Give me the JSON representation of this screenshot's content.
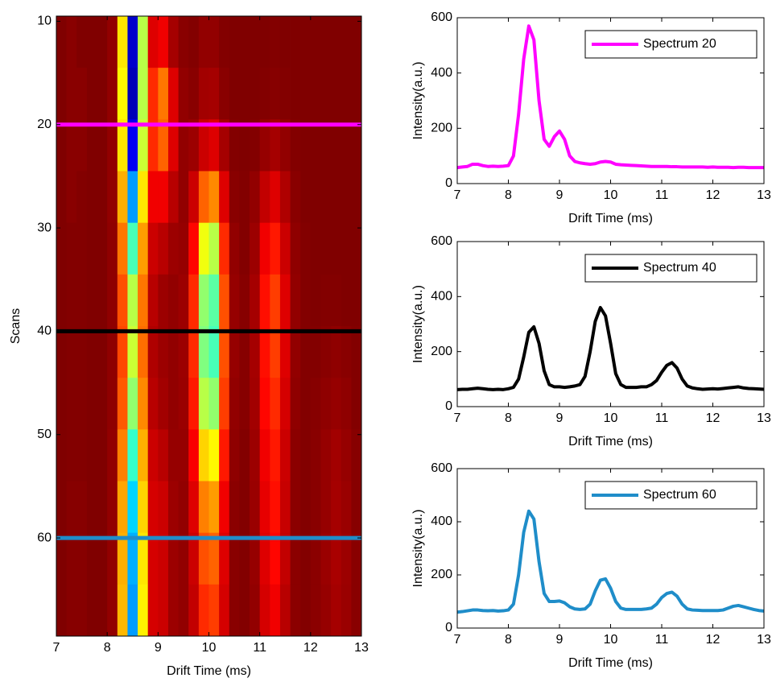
{
  "chart_data": [
    {
      "type": "heatmap",
      "xlabel": "Drift Time (ms)",
      "ylabel": "Scans",
      "x_bins": [
        7.0,
        7.2,
        7.4,
        7.6,
        7.8,
        8.0,
        8.2,
        8.4,
        8.6,
        8.8,
        9.0,
        9.2,
        9.4,
        9.6,
        9.8,
        10.0,
        10.2,
        10.4,
        10.6,
        10.8,
        11.0,
        11.2,
        11.4,
        11.6,
        11.8,
        12.0,
        12.2,
        12.4,
        12.6,
        12.8,
        13.0
      ],
      "y_bins": [
        9.5,
        14.5,
        19.5,
        24.5,
        29.5,
        34.5,
        39.5,
        44.5,
        49.5,
        54.5,
        59.5,
        64.5,
        69.5
      ],
      "values": [
        [
          60,
          65,
          60,
          60,
          60,
          70,
          250,
          560,
          300,
          110,
          120,
          80,
          65,
          62,
          70,
          70,
          62,
          60,
          60,
          60,
          60,
          62,
          60,
          60,
          60,
          60,
          60,
          60,
          60,
          60
        ],
        [
          60,
          65,
          65,
          60,
          60,
          70,
          260,
          570,
          300,
          150,
          190,
          110,
          70,
          65,
          78,
          80,
          65,
          60,
          60,
          60,
          62,
          64,
          62,
          60,
          60,
          60,
          60,
          60,
          60,
          60
        ],
        [
          60,
          65,
          65,
          60,
          60,
          70,
          250,
          540,
          290,
          150,
          180,
          110,
          70,
          75,
          100,
          110,
          80,
          62,
          60,
          62,
          72,
          80,
          70,
          62,
          60,
          60,
          60,
          60,
          60,
          60
        ],
        [
          60,
          65,
          62,
          60,
          60,
          70,
          220,
          450,
          250,
          120,
          120,
          90,
          70,
          100,
          180,
          200,
          110,
          65,
          62,
          70,
          95,
          110,
          85,
          65,
          60,
          60,
          60,
          60,
          60,
          60
        ],
        [
          60,
          62,
          62,
          60,
          60,
          68,
          190,
          360,
          210,
          100,
          90,
          75,
          72,
          130,
          270,
          300,
          150,
          70,
          62,
          75,
          120,
          140,
          100,
          68,
          62,
          60,
          60,
          60,
          60,
          60
        ],
        [
          60,
          62,
          62,
          60,
          60,
          68,
          170,
          300,
          190,
          90,
          75,
          70,
          75,
          150,
          320,
          350,
          170,
          72,
          64,
          80,
          135,
          160,
          110,
          70,
          62,
          60,
          62,
          62,
          60,
          60
        ],
        [
          60,
          62,
          62,
          60,
          60,
          68,
          165,
          290,
          185,
          85,
          75,
          70,
          75,
          150,
          330,
          360,
          170,
          72,
          64,
          80,
          135,
          160,
          110,
          70,
          62,
          62,
          65,
          68,
          65,
          62
        ],
        [
          60,
          62,
          62,
          60,
          60,
          68,
          175,
          320,
          200,
          90,
          78,
          70,
          74,
          140,
          300,
          320,
          160,
          70,
          64,
          78,
          130,
          150,
          105,
          68,
          62,
          64,
          68,
          72,
          68,
          62
        ],
        [
          60,
          62,
          62,
          60,
          60,
          70,
          195,
          370,
          220,
          100,
          90,
          72,
          72,
          125,
          240,
          260,
          140,
          68,
          62,
          75,
          120,
          140,
          100,
          66,
          62,
          65,
          72,
          78,
          72,
          64
        ],
        [
          60,
          64,
          64,
          60,
          60,
          70,
          215,
          420,
          240,
          105,
          100,
          75,
          70,
          110,
          195,
          210,
          120,
          66,
          62,
          74,
          115,
          135,
          98,
          66,
          62,
          65,
          72,
          80,
          74,
          64
        ],
        [
          60,
          64,
          64,
          60,
          60,
          70,
          220,
          440,
          250,
          105,
          100,
          75,
          70,
          100,
          170,
          180,
          110,
          65,
          62,
          72,
          110,
          130,
          95,
          66,
          62,
          66,
          74,
          82,
          75,
          65
        ],
        [
          60,
          64,
          64,
          60,
          60,
          70,
          225,
          450,
          255,
          105,
          100,
          75,
          70,
          95,
          150,
          160,
          105,
          65,
          62,
          70,
          105,
          120,
          90,
          66,
          62,
          66,
          72,
          80,
          74,
          65
        ]
      ],
      "xlim": [
        7,
        13
      ],
      "ylim": [
        9.5,
        69.5
      ],
      "y_reversed": true,
      "xticks": [
        7,
        8,
        9,
        10,
        11,
        12,
        13
      ],
      "yticks": [
        10,
        20,
        30,
        40,
        50,
        60
      ],
      "colormap": "jet",
      "colormap_reversed": true,
      "clim": [
        60,
        600
      ],
      "hlines": [
        {
          "y": 20,
          "color": "#ff00ff"
        },
        {
          "y": 40,
          "color": "#000000"
        },
        {
          "y": 60,
          "color": "#1f8dc9"
        }
      ]
    },
    {
      "type": "line",
      "xlabel": "Drift Time (ms)",
      "ylabel": "Intensity(a.u.)",
      "legend": "upper right",
      "x": [
        7,
        7.1,
        7.2,
        7.3,
        7.4,
        7.5,
        7.6,
        7.7,
        7.8,
        7.9,
        8,
        8.1,
        8.2,
        8.3,
        8.4,
        8.5,
        8.6,
        8.7,
        8.8,
        8.9,
        9,
        9.1,
        9.2,
        9.3,
        9.4,
        9.5,
        9.6,
        9.7,
        9.8,
        9.9,
        10,
        10.1,
        10.2,
        10.3,
        10.4,
        10.5,
        10.6,
        10.7,
        10.8,
        10.9,
        11,
        11.1,
        11.2,
        11.3,
        11.4,
        11.5,
        11.6,
        11.7,
        11.8,
        11.9,
        12,
        12.1,
        12.2,
        12.3,
        12.4,
        12.5,
        12.6,
        12.7,
        12.8,
        12.9,
        13
      ],
      "series": [
        {
          "name": "Spectrum 20",
          "color": "#ff00ff",
          "values": [
            58,
            60,
            62,
            70,
            70,
            65,
            62,
            63,
            62,
            63,
            65,
            100,
            250,
            450,
            570,
            520,
            300,
            160,
            135,
            170,
            190,
            160,
            100,
            80,
            75,
            72,
            70,
            72,
            78,
            80,
            78,
            70,
            68,
            67,
            66,
            65,
            64,
            63,
            62,
            62,
            62,
            62,
            61,
            61,
            60,
            60,
            60,
            60,
            60,
            59,
            60,
            59,
            59,
            59,
            58,
            59,
            59,
            58,
            58,
            58,
            58
          ]
        }
      ],
      "xlim": [
        7,
        13
      ],
      "ylim": [
        0,
        600
      ],
      "xticks": [
        7,
        8,
        9,
        10,
        11,
        12,
        13
      ],
      "yticks": [
        0,
        200,
        400,
        600
      ]
    },
    {
      "type": "line",
      "xlabel": "Drift Time (ms)",
      "ylabel": "Intensity(a.u.)",
      "legend": "upper right",
      "x": [
        7,
        7.1,
        7.2,
        7.3,
        7.4,
        7.5,
        7.6,
        7.7,
        7.8,
        7.9,
        8,
        8.1,
        8.2,
        8.3,
        8.4,
        8.5,
        8.6,
        8.7,
        8.8,
        8.9,
        9,
        9.1,
        9.2,
        9.3,
        9.4,
        9.5,
        9.6,
        9.7,
        9.8,
        9.9,
        10,
        10.1,
        10.2,
        10.3,
        10.4,
        10.5,
        10.6,
        10.7,
        10.8,
        10.9,
        11,
        11.1,
        11.2,
        11.3,
        11.4,
        11.5,
        11.6,
        11.7,
        11.8,
        11.9,
        12,
        12.1,
        12.2,
        12.3,
        12.4,
        12.5,
        12.6,
        12.7,
        12.8,
        12.9,
        13
      ],
      "series": [
        {
          "name": "Spectrum 40",
          "color": "#000000",
          "values": [
            62,
            63,
            63,
            65,
            67,
            65,
            63,
            62,
            63,
            62,
            65,
            70,
            100,
            180,
            270,
            290,
            230,
            130,
            80,
            72,
            72,
            70,
            72,
            75,
            80,
            110,
            200,
            310,
            360,
            330,
            230,
            120,
            80,
            70,
            70,
            70,
            72,
            72,
            80,
            95,
            125,
            150,
            160,
            140,
            100,
            75,
            68,
            65,
            63,
            64,
            65,
            64,
            66,
            68,
            70,
            72,
            68,
            66,
            65,
            64,
            63
          ]
        }
      ],
      "xlim": [
        7,
        13
      ],
      "ylim": [
        0,
        600
      ],
      "xticks": [
        7,
        8,
        9,
        10,
        11,
        12,
        13
      ],
      "yticks": [
        0,
        200,
        400,
        600
      ]
    },
    {
      "type": "line",
      "xlabel": "Drift Time (ms)",
      "ylabel": "Intensity(a.u.)",
      "legend": "upper right",
      "x": [
        7,
        7.1,
        7.2,
        7.3,
        7.4,
        7.5,
        7.6,
        7.7,
        7.8,
        7.9,
        8,
        8.1,
        8.2,
        8.3,
        8.4,
        8.5,
        8.6,
        8.7,
        8.8,
        8.9,
        9,
        9.1,
        9.2,
        9.3,
        9.4,
        9.5,
        9.6,
        9.7,
        9.8,
        9.9,
        10,
        10.1,
        10.2,
        10.3,
        10.4,
        10.5,
        10.6,
        10.7,
        10.8,
        10.9,
        11,
        11.1,
        11.2,
        11.3,
        11.4,
        11.5,
        11.6,
        11.7,
        11.8,
        11.9,
        12,
        12.1,
        12.2,
        12.3,
        12.4,
        12.5,
        12.6,
        12.7,
        12.8,
        12.9,
        13
      ],
      "series": [
        {
          "name": "Spectrum 60",
          "color": "#1f8dc9",
          "values": [
            60,
            62,
            65,
            68,
            68,
            66,
            65,
            66,
            64,
            65,
            68,
            90,
            200,
            360,
            440,
            410,
            250,
            130,
            100,
            100,
            102,
            95,
            80,
            72,
            70,
            72,
            90,
            140,
            180,
            185,
            150,
            100,
            75,
            70,
            70,
            70,
            70,
            72,
            75,
            90,
            115,
            130,
            135,
            120,
            90,
            72,
            68,
            67,
            66,
            66,
            66,
            66,
            68,
            75,
            82,
            85,
            80,
            75,
            70,
            66,
            64
          ]
        }
      ],
      "xlim": [
        7,
        13
      ],
      "ylim": [
        0,
        600
      ],
      "xticks": [
        7,
        8,
        9,
        10,
        11,
        12,
        13
      ],
      "yticks": [
        0,
        200,
        400,
        600
      ]
    }
  ]
}
